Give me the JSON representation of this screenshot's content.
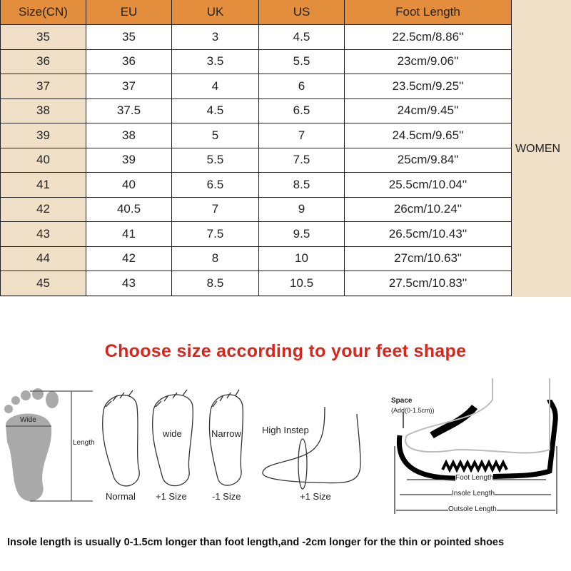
{
  "table": {
    "headers": [
      "Size(CN)",
      "EU",
      "UK",
      "US",
      "Foot Length"
    ],
    "rows": [
      [
        "35",
        "35",
        "3",
        "4.5",
        "22.5cm/8.86''"
      ],
      [
        "36",
        "36",
        "3.5",
        "5.5",
        "23cm/9.06''"
      ],
      [
        "37",
        "37",
        "4",
        "6",
        "23.5cm/9.25''"
      ],
      [
        "38",
        "37.5",
        "4.5",
        "6.5",
        "24cm/9.45''"
      ],
      [
        "39",
        "38",
        "5",
        "7",
        "24.5cm/9.65''"
      ],
      [
        "40",
        "39",
        "5.5",
        "7.5",
        "25cm/9.84\""
      ],
      [
        "41",
        "40",
        "6.5",
        "8.5",
        "25.5cm/10.04''"
      ],
      [
        "42",
        "40.5",
        "7",
        "9",
        "26cm/10.24''"
      ],
      [
        "43",
        "41",
        "7.5",
        "9.5",
        "26.5cm/10.43''"
      ],
      [
        "44",
        "42",
        "8",
        "10",
        "27cm/10.63\""
      ],
      [
        "45",
        "43",
        "8.5",
        "10.5",
        "27.5cm/10.83''"
      ]
    ],
    "side_label": "WOMEN"
  },
  "colors": {
    "header": "#e38e3c",
    "first_col": "#f1e0c8",
    "heading": "#d7261c"
  },
  "guide": {
    "heading": "Choose size according to your feet shape",
    "wide": "Wide",
    "length": "Length",
    "feet": [
      {
        "inner": "",
        "caption": "Normal"
      },
      {
        "inner": "wide",
        "caption": "+1 Size"
      },
      {
        "inner": "Narrow",
        "caption": "-1 Size"
      }
    ],
    "instep": {
      "label": "High Instep",
      "caption": "+1 Size"
    },
    "shoe": {
      "space": "Space",
      "space_note": "(Add(0-1.5cm))",
      "foot_length": "Foot Length",
      "insole_length": "Insole Length",
      "outsole_length": "Outsole Length"
    },
    "footer": "Insole length is usually 0-1.5cm longer than foot length,and -2cm longer for the thin or pointed shoes"
  }
}
